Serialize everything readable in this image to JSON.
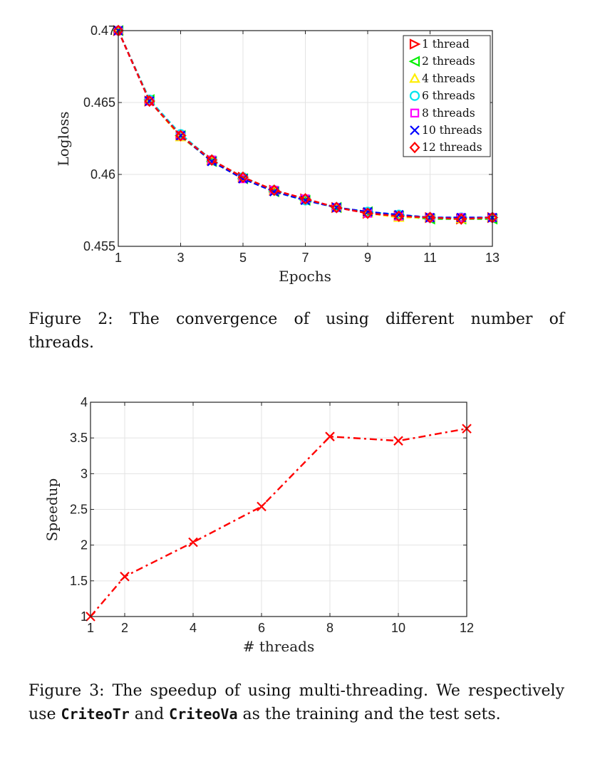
{
  "chart_data": [
    {
      "type": "line",
      "xlabel": "Epochs",
      "ylabel": "Logloss",
      "xlim": [
        1,
        13
      ],
      "ylim": [
        0.455,
        0.47
      ],
      "xticks": [
        1,
        3,
        5,
        7,
        9,
        11,
        13
      ],
      "xtick_labels": [
        "1",
        "3",
        "5",
        "7",
        "9",
        "11",
        "13"
      ],
      "yticks": [
        0.455,
        0.46,
        0.465,
        0.47
      ],
      "ytick_labels": [
        "0.455",
        "0.46",
        "0.465",
        "0.47"
      ],
      "grid": true,
      "legend": "top-right",
      "x": [
        1,
        2,
        3,
        4,
        5,
        6,
        7,
        8,
        9,
        10,
        11,
        12,
        13
      ],
      "series": [
        {
          "name": "1 thread",
          "color": "#ff0000",
          "marker": "triangle-right",
          "values": [
            0.47,
            0.4651,
            0.4627,
            0.461,
            0.4598,
            0.4589,
            0.4583,
            0.4577,
            0.4573,
            0.4571,
            0.457,
            0.4569,
            0.457
          ]
        },
        {
          "name": "2 threads",
          "color": "#00ee00",
          "marker": "triangle-left",
          "values": [
            0.47,
            0.4652,
            0.4627,
            0.4609,
            0.4597,
            0.4588,
            0.4582,
            0.4577,
            0.4574,
            0.4571,
            0.4569,
            0.4569,
            0.4569
          ]
        },
        {
          "name": "4 threads",
          "color": "#ffee00",
          "marker": "triangle-up",
          "values": [
            0.47,
            0.4651,
            0.4626,
            0.461,
            0.4598,
            0.4589,
            0.4583,
            0.4577,
            0.4573,
            0.457,
            0.457,
            0.4569,
            0.457
          ]
        },
        {
          "name": "6 threads",
          "color": "#00e5ee",
          "marker": "circle",
          "values": [
            0.47,
            0.4652,
            0.4628,
            0.461,
            0.4598,
            0.4589,
            0.4582,
            0.4577,
            0.4574,
            0.4572,
            0.457,
            0.457,
            0.457
          ]
        },
        {
          "name": "8 threads",
          "color": "#ff00ff",
          "marker": "square",
          "values": [
            0.47,
            0.4651,
            0.4627,
            0.461,
            0.4597,
            0.4589,
            0.4583,
            0.4577,
            0.4573,
            0.4571,
            0.457,
            0.457,
            0.457
          ]
        },
        {
          "name": "10 threads",
          "color": "#0000ff",
          "marker": "x",
          "values": [
            0.47,
            0.4651,
            0.4627,
            0.4609,
            0.4597,
            0.4588,
            0.4582,
            0.4577,
            0.4574,
            0.4572,
            0.457,
            0.457,
            0.457
          ]
        },
        {
          "name": "12 threads",
          "color": "#ff0000",
          "marker": "diamond",
          "values": [
            0.47,
            0.4651,
            0.4627,
            0.461,
            0.4598,
            0.4589,
            0.4583,
            0.4577,
            0.4573,
            0.4571,
            0.457,
            0.4569,
            0.457
          ]
        }
      ]
    },
    {
      "type": "line",
      "xlabel": "# threads",
      "ylabel": "Speedup",
      "xlim": [
        1,
        12
      ],
      "ylim": [
        1,
        4
      ],
      "xticks": [
        1,
        2,
        4,
        6,
        8,
        10,
        12
      ],
      "xtick_labels": [
        "1",
        "2",
        "4",
        "6",
        "8",
        "10",
        "12"
      ],
      "yticks": [
        1,
        1.5,
        2,
        2.5,
        3,
        3.5,
        4
      ],
      "ytick_labels": [
        "1",
        "1.5",
        "2",
        "2.5",
        "3",
        "3.5",
        "4"
      ],
      "grid": true,
      "x": [
        1,
        2,
        4,
        6,
        8,
        10,
        12
      ],
      "series": [
        {
          "color": "#ff0000",
          "marker": "x",
          "line_style": "dash-dot",
          "values": [
            1.0,
            1.56,
            2.04,
            2.54,
            3.52,
            3.46,
            3.63
          ]
        }
      ]
    }
  ],
  "captions": {
    "fig2": "Figure 2:  The convergence of using different number of threads.",
    "fig3_a": "Figure 3: The speedup of using multi-threading. We respectively use ",
    "fig3_b": "CriteoTr",
    "fig3_c": " and ",
    "fig3_d": "CriteoVa",
    "fig3_e": " as the training and the test sets."
  }
}
